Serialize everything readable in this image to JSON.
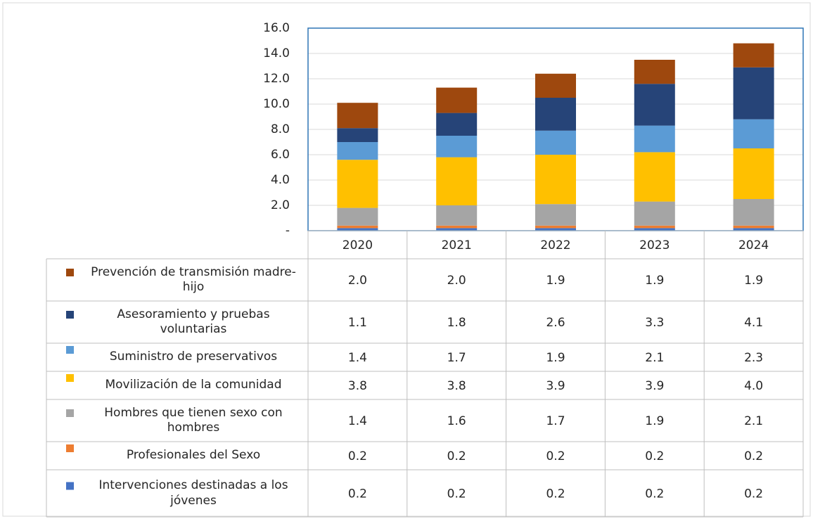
{
  "chart_data": {
    "type": "bar",
    "stacked": true,
    "categories": [
      "2020",
      "2021",
      "2022",
      "2023",
      "2024"
    ],
    "ylim": [
      0,
      16
    ],
    "yticks": [
      {
        "value": 0,
        "label": "-"
      },
      {
        "value": 2,
        "label": "2.0"
      },
      {
        "value": 4,
        "label": "4.0"
      },
      {
        "value": 6,
        "label": "6.0"
      },
      {
        "value": 8,
        "label": "8.0"
      },
      {
        "value": 10,
        "label": "10.0"
      },
      {
        "value": 12,
        "label": "12.0"
      },
      {
        "value": 14,
        "label": "14.0"
      },
      {
        "value": 16,
        "label": "16.0"
      }
    ],
    "grid": true,
    "series": [
      {
        "name": "Prevención de transmisión madre-hijo",
        "color": "#9e480e",
        "values": [
          2.0,
          2.0,
          1.9,
          1.9,
          1.9
        ],
        "value_labels": [
          "2.0",
          "2.0",
          "1.9",
          "1.9",
          "1.9"
        ]
      },
      {
        "name": "Asesoramiento y pruebas voluntarias",
        "color": "#264478",
        "values": [
          1.1,
          1.8,
          2.6,
          3.3,
          4.1
        ],
        "value_labels": [
          "1.1",
          "1.8",
          "2.6",
          "3.3",
          "4.1"
        ]
      },
      {
        "name": "Suministro de preservativos",
        "color": "#5b9bd5",
        "values": [
          1.4,
          1.7,
          1.9,
          2.1,
          2.3
        ],
        "value_labels": [
          "1.4",
          "1.7",
          "1.9",
          "2.1",
          "2.3"
        ]
      },
      {
        "name": "Movilización de la comunidad",
        "color": "#ffc000",
        "values": [
          3.8,
          3.8,
          3.9,
          3.9,
          4.0
        ],
        "value_labels": [
          "3.8",
          "3.8",
          "3.9",
          "3.9",
          "4.0"
        ]
      },
      {
        "name": "Hombres que tienen sexo con hombres",
        "color": "#a5a5a5",
        "values": [
          1.4,
          1.6,
          1.7,
          1.9,
          2.1
        ],
        "value_labels": [
          "1.4",
          "1.6",
          "1.7",
          "1.9",
          "2.1"
        ]
      },
      {
        "name": "Profesionales del Sexo",
        "color": "#ed7d31",
        "values": [
          0.2,
          0.2,
          0.2,
          0.2,
          0.2
        ],
        "value_labels": [
          "0.2",
          "0.2",
          "0.2",
          "0.2",
          "0.2"
        ]
      },
      {
        "name": "Intervenciones destinadas a los jóvenes",
        "color": "#4472c4",
        "values": [
          0.2,
          0.2,
          0.2,
          0.2,
          0.2
        ],
        "value_labels": [
          "0.2",
          "0.2",
          "0.2",
          "0.2",
          "0.2"
        ]
      }
    ]
  }
}
